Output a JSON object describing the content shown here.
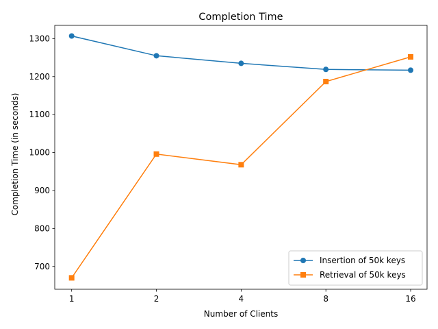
{
  "chart_data": {
    "type": "line",
    "title": "Completion Time",
    "xlabel": "Number of Clients",
    "ylabel": "Completion Time (in seconds)",
    "categories": [
      "1",
      "2",
      "4",
      "8",
      "16"
    ],
    "ylim": [
      640,
      1335
    ],
    "yticks": [
      700,
      800,
      900,
      1000,
      1100,
      1200,
      1300
    ],
    "grid": false,
    "legend_position": "lower-right",
    "series": [
      {
        "name": "Insertion of 50k keys",
        "marker": "circle",
        "color": "#1f77b4",
        "values": [
          1307,
          1255,
          1235,
          1219,
          1217
        ]
      },
      {
        "name": "Retrieval of 50k keys",
        "marker": "square",
        "color": "#ff7f0e",
        "values": [
          670,
          996,
          968,
          1187,
          1252
        ]
      }
    ]
  }
}
